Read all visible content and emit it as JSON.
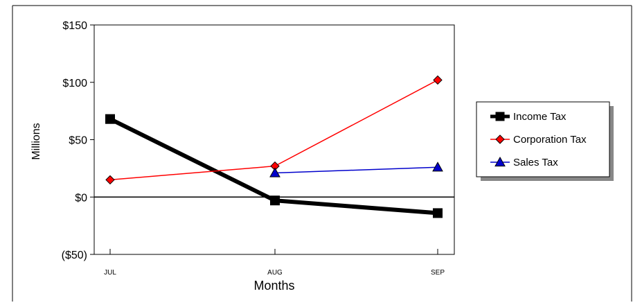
{
  "chart_data": {
    "type": "line",
    "title": "",
    "xlabel": "Months",
    "ylabel": "Millions",
    "categories": [
      "JUL",
      "AUG",
      "SEP"
    ],
    "ylim": [
      -50,
      150
    ],
    "y_ticks": [
      150,
      100,
      50,
      0,
      -50
    ],
    "y_tick_labels": [
      "$150",
      "$100",
      "$50",
      "$0",
      "($50)"
    ],
    "grid": false,
    "legend_position": "right",
    "series": [
      {
        "name": "Income Tax",
        "values": [
          68,
          -3,
          -14
        ],
        "color": "#000000",
        "marker": "square"
      },
      {
        "name": "Corporation Tax",
        "values": [
          15,
          27,
          102
        ],
        "color": "#ff0000",
        "marker": "diamond"
      },
      {
        "name": "Sales Tax",
        "values": [
          null,
          21,
          26
        ],
        "color": "#0000cc",
        "marker": "triangle"
      }
    ]
  }
}
